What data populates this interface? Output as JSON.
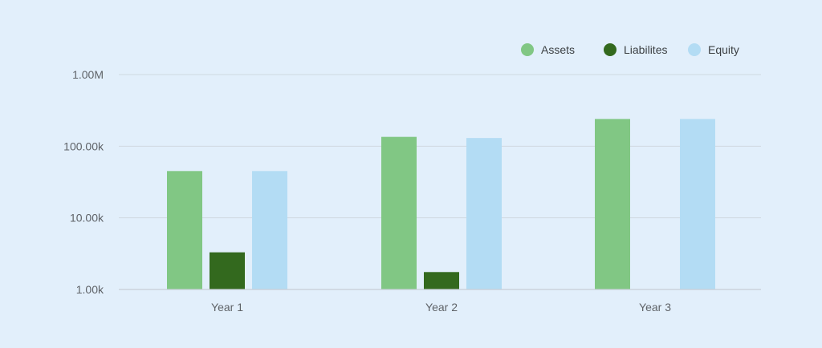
{
  "chart_data": {
    "type": "bar",
    "title": "",
    "xlabel": "",
    "ylabel": "",
    "scale": "log",
    "categories": [
      "Year 1",
      "Year 2",
      "Year 3"
    ],
    "series": [
      {
        "name": "Assets",
        "color": "#81c784",
        "values": [
          45000,
          135000,
          240000
        ]
      },
      {
        "name": "Liabilites",
        "color": "#33691e",
        "values": [
          3300,
          1750,
          null
        ]
      },
      {
        "name": "Equity",
        "color": "#b3dcf4",
        "values": [
          45000,
          130000,
          240000
        ]
      }
    ],
    "yticks": [
      1000,
      10000,
      100000,
      1000000
    ],
    "ytick_labels": [
      "1.00k",
      "10.00k",
      "100.00k",
      "1.00M"
    ],
    "ylim": [
      1000,
      1000000
    ],
    "grid": true,
    "legend": "top-right"
  }
}
